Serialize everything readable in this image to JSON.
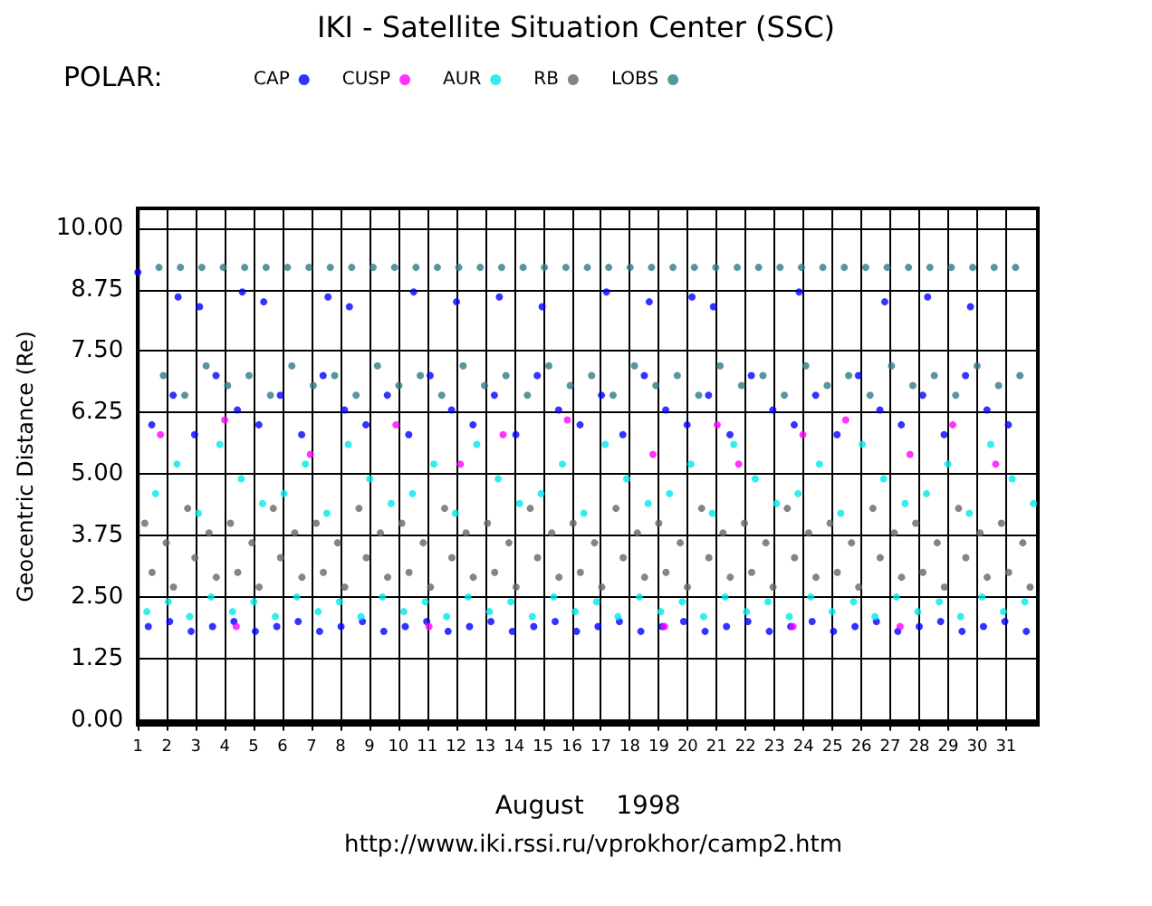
{
  "chart_data": {
    "type": "scatter",
    "title": "IKI - Satellite Situation Center (SSC)",
    "subtitle": "POLAR:",
    "xlabel": "August    1998",
    "ylabel": "Geocentric Distance (Re)",
    "annotations": [
      "http://www.iki.rssi.ru/vprokhor/camp2.htm"
    ],
    "xlim": [
      1,
      32.1
    ],
    "ylim": [
      -0.1,
      10.4
    ],
    "xticks": [
      1,
      2,
      3,
      4,
      5,
      6,
      7,
      8,
      9,
      10,
      11,
      12,
      13,
      14,
      15,
      16,
      17,
      18,
      19,
      20,
      21,
      22,
      23,
      24,
      25,
      26,
      27,
      28,
      29,
      30,
      31
    ],
    "yticks": [
      {
        "value": 0,
        "label": "0.00"
      },
      {
        "value": 1.25,
        "label": "1.25"
      },
      {
        "value": 2.5,
        "label": "2.50"
      },
      {
        "value": 3.75,
        "label": "3.75"
      },
      {
        "value": 5,
        "label": "5.00"
      },
      {
        "value": 6.25,
        "label": "6.25"
      },
      {
        "value": 7.5,
        "label": "7.50"
      },
      {
        "value": 8.75,
        "label": "8.75"
      },
      {
        "value": 10,
        "label": "10.00"
      }
    ],
    "grid": true,
    "legend": "top left",
    "marker": "circle",
    "series": [
      {
        "name": "CAP",
        "color": "#0000ff",
        "x": [
          1.0,
          2.39,
          3.13,
          4.61,
          5.35,
          7.57,
          8.31,
          10.53,
          12.01,
          13.49,
          14.97,
          17.19,
          18.67,
          20.15,
          20.89,
          23.85,
          26.81,
          28.29,
          29.77,
          1.48,
          2.22,
          2.96,
          3.7,
          4.44,
          5.18,
          5.92,
          6.66,
          7.4,
          8.14,
          8.88,
          9.62,
          10.36,
          11.1,
          11.84,
          12.58,
          13.32,
          14.06,
          14.8,
          15.54,
          16.28,
          17.02,
          17.76,
          18.5,
          19.24,
          19.98,
          20.72,
          21.46,
          22.2,
          22.94,
          23.68,
          24.42,
          25.16,
          25.9,
          26.64,
          27.38,
          28.12,
          28.86,
          29.6,
          30.34,
          31.08,
          1.36,
          2.1,
          2.84,
          3.58,
          4.32,
          5.06,
          5.8,
          6.54,
          7.28,
          8.02,
          8.76,
          9.5,
          10.24,
          10.98,
          11.72,
          12.46,
          13.2,
          13.94,
          14.68,
          15.42,
          16.16,
          16.9,
          17.64,
          18.38,
          19.12,
          19.86,
          20.6,
          21.34,
          22.08,
          22.82,
          23.56,
          24.3,
          25.04,
          25.78,
          26.52,
          27.26,
          28.0,
          28.74,
          29.48,
          30.22,
          30.96,
          31.7
        ],
        "values": [
          9.1,
          8.6,
          8.4,
          8.7,
          8.5,
          8.6,
          8.4,
          8.7,
          8.5,
          8.6,
          8.4,
          8.7,
          8.5,
          8.6,
          8.4,
          8.7,
          8.5,
          8.6,
          8.4,
          6.0,
          6.6,
          5.8,
          7.0,
          6.3,
          6.0,
          6.6,
          5.8,
          7.0,
          6.3,
          6.0,
          6.6,
          5.8,
          7.0,
          6.3,
          6.0,
          6.6,
          5.8,
          7.0,
          6.3,
          6.0,
          6.6,
          5.8,
          7.0,
          6.3,
          6.0,
          6.6,
          5.8,
          7.0,
          6.3,
          6.0,
          6.6,
          5.8,
          7.0,
          6.3,
          6.0,
          6.6,
          5.8,
          7.0,
          6.3,
          6.0,
          1.9,
          2.0,
          1.8,
          1.9,
          2.0,
          1.8,
          1.9,
          2.0,
          1.8,
          1.9,
          2.0,
          1.8,
          1.9,
          2.0,
          1.8,
          1.9,
          2.0,
          1.8,
          1.9,
          2.0,
          1.8,
          1.9,
          2.0,
          1.8,
          1.9,
          2.0,
          1.8,
          1.9,
          2.0,
          1.8,
          1.9,
          2.0,
          1.8,
          1.9,
          2.0,
          1.8,
          1.9,
          2.0,
          1.8,
          1.9,
          2.0,
          1.8
        ]
      },
      {
        "name": "CUSP",
        "color": "#ff00ff",
        "x": [
          1.78,
          4.0,
          6.96,
          9.92,
          12.14,
          13.62,
          15.84,
          18.8,
          21.02,
          21.76,
          23.98,
          25.46,
          27.68,
          29.16,
          30.64,
          4.4,
          11.06,
          19.2,
          23.64,
          27.34
        ],
        "values": [
          5.8,
          6.1,
          5.4,
          6.0,
          5.2,
          5.8,
          6.1,
          5.4,
          6.0,
          5.2,
          5.8,
          6.1,
          5.4,
          6.0,
          5.2,
          1.9,
          1.9,
          1.9,
          1.9,
          1.9
        ]
      },
      {
        "name": "AUR",
        "color": "#00e8e8",
        "x": [
          1.31,
          2.05,
          2.79,
          3.53,
          4.27,
          5.01,
          5.75,
          6.49,
          7.23,
          7.97,
          8.71,
          9.45,
          10.19,
          10.93,
          11.67,
          12.41,
          13.15,
          13.89,
          14.63,
          15.37,
          16.11,
          16.85,
          17.59,
          18.33,
          19.07,
          19.81,
          20.55,
          21.29,
          22.03,
          22.77,
          23.51,
          24.25,
          24.99,
          25.73,
          26.47,
          27.21,
          27.95,
          28.69,
          29.43,
          30.17,
          30.91,
          31.65,
          1.61,
          2.35,
          3.09,
          3.83,
          4.57,
          5.31,
          6.05,
          6.79,
          7.53,
          8.27,
          9.01,
          9.75,
          10.49,
          11.23,
          11.97,
          12.71,
          13.45,
          14.19,
          14.93,
          15.67,
          16.41,
          17.15,
          17.89,
          18.63,
          19.37,
          20.11,
          20.85,
          21.59,
          22.33,
          23.07,
          23.81,
          24.55,
          25.29,
          26.03,
          26.77,
          27.51,
          28.25,
          28.99,
          29.73,
          30.47,
          31.21,
          31.95
        ],
        "values": [
          2.2,
          2.4,
          2.1,
          2.5,
          2.2,
          2.4,
          2.1,
          2.5,
          2.2,
          2.4,
          2.1,
          2.5,
          2.2,
          2.4,
          2.1,
          2.5,
          2.2,
          2.4,
          2.1,
          2.5,
          2.2,
          2.4,
          2.1,
          2.5,
          2.2,
          2.4,
          2.1,
          2.5,
          2.2,
          2.4,
          2.1,
          2.5,
          2.2,
          2.4,
          2.1,
          2.5,
          2.2,
          2.4,
          2.1,
          2.5,
          2.2,
          2.4,
          4.6,
          5.2,
          4.2,
          5.6,
          4.9,
          4.4,
          4.6,
          5.2,
          4.2,
          5.6,
          4.9,
          4.4,
          4.6,
          5.2,
          4.2,
          5.6,
          4.9,
          4.4,
          4.6,
          5.2,
          4.2,
          5.6,
          4.9,
          4.4,
          4.6,
          5.2,
          4.2,
          5.6,
          4.9,
          4.4,
          4.6,
          5.2,
          4.2,
          5.6,
          4.9,
          4.4,
          4.6,
          5.2,
          4.2,
          5.6,
          4.9,
          4.4
        ]
      },
      {
        "name": "RB",
        "color": "#666666",
        "x": [
          1.24,
          1.98,
          2.72,
          3.46,
          4.2,
          4.94,
          5.68,
          6.42,
          7.16,
          7.9,
          8.64,
          9.38,
          10.12,
          10.86,
          11.6,
          12.34,
          13.08,
          13.82,
          14.56,
          15.3,
          16.04,
          16.78,
          17.52,
          18.26,
          19.0,
          19.74,
          20.48,
          21.22,
          21.96,
          22.7,
          23.44,
          24.18,
          24.92,
          25.66,
          26.4,
          27.14,
          27.88,
          28.62,
          29.36,
          30.1,
          30.84,
          31.58,
          1.49,
          2.23,
          2.97,
          3.71,
          4.45,
          5.19,
          5.93,
          6.67,
          7.41,
          8.15,
          8.89,
          9.63,
          10.37,
          11.11,
          11.85,
          12.59,
          13.33,
          14.07,
          14.81,
          15.55,
          16.29,
          17.03,
          17.77,
          18.51,
          19.25,
          19.99,
          20.73,
          21.47,
          22.21,
          22.95,
          23.69,
          24.43,
          25.17,
          25.91,
          26.65,
          27.39,
          28.13,
          28.87,
          29.61,
          30.35,
          31.09,
          31.83
        ],
        "values": [
          4.0,
          3.6,
          4.3,
          3.8,
          4.0,
          3.6,
          4.3,
          3.8,
          4.0,
          3.6,
          4.3,
          3.8,
          4.0,
          3.6,
          4.3,
          3.8,
          4.0,
          3.6,
          4.3,
          3.8,
          4.0,
          3.6,
          4.3,
          3.8,
          4.0,
          3.6,
          4.3,
          3.8,
          4.0,
          3.6,
          4.3,
          3.8,
          4.0,
          3.6,
          4.3,
          3.8,
          4.0,
          3.6,
          4.3,
          3.8,
          4.0,
          3.6,
          3.0,
          2.7,
          3.3,
          2.9,
          3.0,
          2.7,
          3.3,
          2.9,
          3.0,
          2.7,
          3.3,
          2.9,
          3.0,
          2.7,
          3.3,
          2.9,
          3.0,
          2.7,
          3.3,
          2.9,
          3.0,
          2.7,
          3.3,
          2.9,
          3.0,
          2.7,
          3.3,
          2.9,
          3.0,
          2.7,
          3.3,
          2.9,
          3.0,
          2.7,
          3.3,
          2.9,
          3.0,
          2.7,
          3.3,
          2.9,
          3.0,
          2.7
        ]
      },
      {
        "name": "LOBS",
        "color": "#2e7b85",
        "x": [
          1.73,
          2.47,
          3.21,
          3.95,
          4.69,
          5.43,
          6.17,
          6.91,
          7.65,
          8.39,
          9.13,
          9.87,
          10.61,
          11.35,
          12.09,
          12.83,
          13.57,
          14.31,
          15.05,
          15.79,
          16.53,
          17.27,
          18.01,
          18.75,
          19.49,
          20.23,
          20.97,
          21.71,
          22.45,
          23.19,
          23.93,
          24.67,
          25.41,
          26.15,
          26.89,
          27.63,
          28.37,
          29.11,
          29.85,
          30.59,
          31.33,
          1.88,
          2.62,
          3.36,
          4.1,
          4.84,
          5.58,
          6.32,
          7.06,
          7.8,
          8.54,
          9.28,
          10.02,
          10.76,
          11.5,
          12.24,
          12.98,
          13.72,
          14.46,
          15.2,
          15.94,
          16.68,
          17.42,
          18.16,
          18.9,
          19.64,
          20.38,
          21.12,
          21.86,
          22.6,
          23.34,
          24.08,
          24.82,
          25.56,
          26.3,
          27.04,
          27.78,
          28.52,
          29.26,
          30.0,
          30.74,
          31.48
        ],
        "values": [
          9.2,
          9.2,
          9.2,
          9.2,
          9.2,
          9.2,
          9.2,
          9.2,
          9.2,
          9.2,
          9.2,
          9.2,
          9.2,
          9.2,
          9.2,
          9.2,
          9.2,
          9.2,
          9.2,
          9.2,
          9.2,
          9.2,
          9.2,
          9.2,
          9.2,
          9.2,
          9.2,
          9.2,
          9.2,
          9.2,
          9.2,
          9.2,
          9.2,
          9.2,
          9.2,
          9.2,
          9.2,
          9.2,
          9.2,
          9.2,
          9.2,
          7.0,
          6.6,
          7.2,
          6.8,
          7.0,
          6.6,
          7.2,
          6.8,
          7.0,
          6.6,
          7.2,
          6.8,
          7.0,
          6.6,
          7.2,
          6.8,
          7.0,
          6.6,
          7.2,
          6.8,
          7.0,
          6.6,
          7.2,
          6.8,
          7.0,
          6.6,
          7.2,
          6.8,
          7.0,
          6.6,
          7.2,
          6.8,
          7.0,
          6.6,
          7.2,
          6.8,
          7.0,
          6.6,
          7.2,
          6.8,
          7.0
        ]
      }
    ]
  }
}
